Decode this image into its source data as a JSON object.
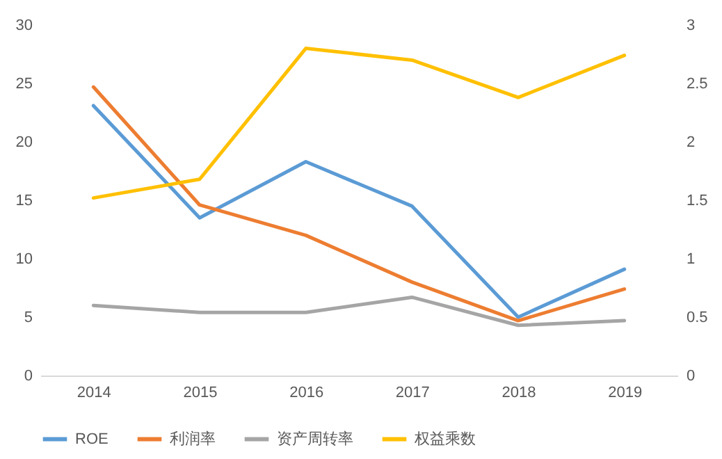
{
  "chart_data": {
    "type": "line",
    "categories": [
      "2014",
      "2015",
      "2016",
      "2017",
      "2018",
      "2019"
    ],
    "series": [
      {
        "name": "ROE",
        "color": "#5b9bd5",
        "values": [
          23.1,
          13.5,
          18.3,
          14.5,
          5.0,
          9.1
        ]
      },
      {
        "name": "利润率",
        "color": "#ed7d31",
        "values": [
          24.7,
          14.6,
          12.0,
          8.0,
          4.7,
          7.4
        ]
      },
      {
        "name": "资产周转率",
        "color": "#a5a5a5",
        "axis": "y2",
        "values": [
          0.6,
          0.54,
          0.54,
          0.67,
          0.43,
          0.47
        ]
      },
      {
        "name": "权益乘数",
        "color": "#ffc000",
        "axis": "y2",
        "values": [
          1.52,
          1.68,
          2.8,
          2.7,
          2.38,
          2.74
        ]
      }
    ],
    "ylim": [
      0,
      30
    ],
    "yticks": [
      0,
      5,
      10,
      15,
      20,
      25,
      30
    ],
    "y2lim": [
      0,
      3
    ],
    "y2ticks": [
      0,
      0.5,
      1,
      1.5,
      2,
      2.5,
      3
    ],
    "grid": false,
    "legend": "bottom",
    "marker": "none",
    "line_style": "solid"
  }
}
